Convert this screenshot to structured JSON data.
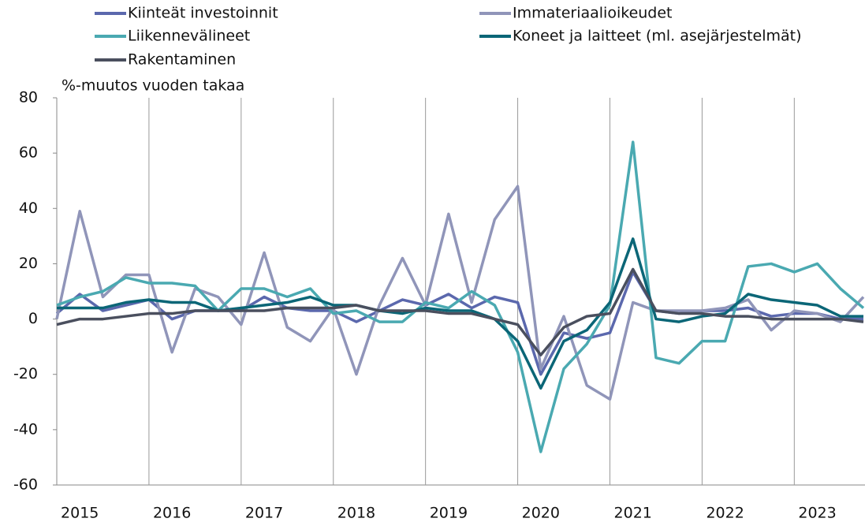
{
  "chart_data": {
    "type": "line",
    "y_label": "%-muutos vuoden takaa",
    "categories": [
      null,
      "2015",
      null,
      null,
      null,
      "2016",
      null,
      null,
      null,
      "2017",
      null,
      null,
      null,
      "2018",
      null,
      null,
      null,
      "2019",
      null,
      null,
      null,
      "2020",
      null,
      null,
      null,
      "2021",
      null,
      null,
      null,
      "2022",
      null,
      null,
      null,
      "2023",
      null,
      null
    ],
    "series": [
      {
        "name": "Kiinteät investoinnit",
        "color": "#5b68ad",
        "values": [
          2,
          9,
          3,
          5,
          7,
          0,
          3,
          3,
          3,
          8,
          4,
          3,
          3,
          -1,
          3,
          7,
          5,
          9,
          4,
          8,
          6,
          -20,
          -5,
          -7,
          -5,
          17,
          3,
          2,
          3,
          3,
          4,
          1,
          2,
          2,
          0,
          0
        ]
      },
      {
        "name": "Immateriaalioikeudet",
        "color": "#9095b9",
        "values": [
          0,
          39,
          8,
          16,
          16,
          -12,
          11,
          8,
          -2,
          24,
          -3,
          -8,
          4,
          -20,
          5,
          22,
          5,
          38,
          6,
          36,
          48,
          -18,
          1,
          -24,
          -29,
          6,
          3,
          3,
          3,
          4,
          7,
          -4,
          3,
          2,
          -1,
          8
        ]
      },
      {
        "name": "Liikennevälineet",
        "color": "#4aa9b1",
        "values": [
          5,
          8,
          10,
          15,
          13,
          13,
          12,
          3,
          11,
          11,
          8,
          11,
          2,
          3,
          -1,
          -1,
          6,
          4,
          10,
          5,
          -12,
          -48,
          -18,
          -9,
          5,
          64,
          -14,
          -16,
          -8,
          -8,
          19,
          20,
          17,
          20,
          11,
          4
        ]
      },
      {
        "name": "Koneet ja laitteet (ml. asejärjestelmät)",
        "color": "#0b6677",
        "values": [
          4,
          4,
          4,
          6,
          7,
          6,
          6,
          3,
          4,
          5,
          6,
          8,
          5,
          5,
          3,
          2,
          4,
          3,
          3,
          0,
          -8,
          -25,
          -8,
          -4,
          6,
          29,
          0,
          -1,
          1,
          2,
          9,
          7,
          6,
          5,
          1,
          1
        ]
      },
      {
        "name": "Rakentaminen",
        "color": "#4a4f5e",
        "values": [
          -2,
          0,
          0,
          1,
          2,
          2,
          3,
          3,
          3,
          3,
          4,
          4,
          4,
          5,
          3,
          3,
          3,
          2,
          2,
          0,
          -2,
          -13,
          -3,
          1,
          2,
          18,
          3,
          2,
          2,
          1,
          1,
          0,
          0,
          0,
          0,
          -1
        ]
      }
    ],
    "ylim": [
      -60,
      80
    ],
    "yticks": [
      -60,
      -40,
      -20,
      0,
      20,
      40,
      60,
      80
    ]
  }
}
